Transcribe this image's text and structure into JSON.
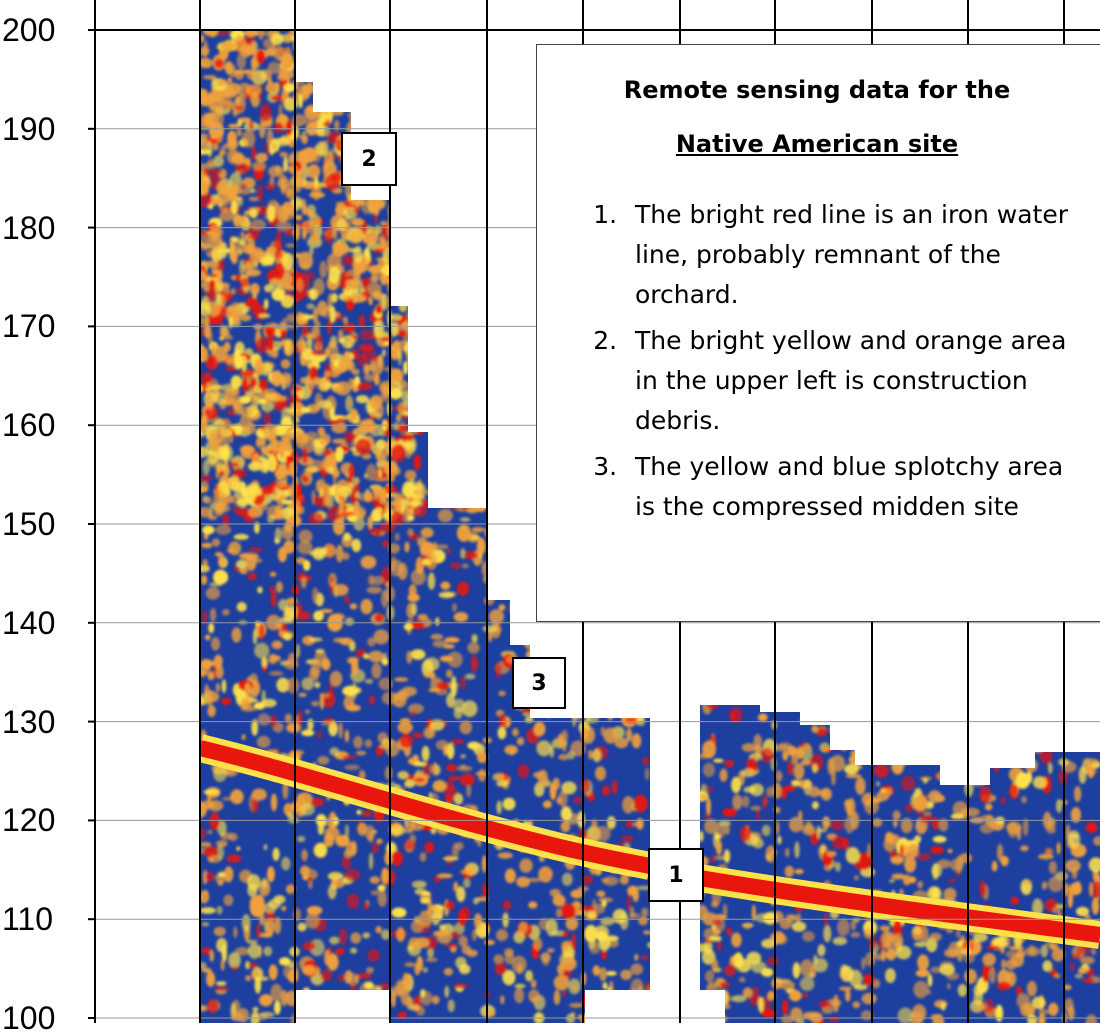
{
  "chart_data": {
    "type": "heatmap",
    "y_ticks": [
      "200",
      "190",
      "180",
      "170",
      "160",
      "150",
      "140",
      "130",
      "120",
      "110",
      "100"
    ],
    "ylim": [
      100,
      200
    ],
    "grid": true,
    "colors": {
      "background": "#1d3fa0",
      "low": "#f0a13c",
      "mid": "#ffe24a",
      "high": "#e8160c"
    }
  },
  "markers": [
    {
      "label": "2"
    },
    {
      "label": "3"
    },
    {
      "label": "1"
    }
  ],
  "legend": {
    "title_line1": "Remote sensing data for the",
    "title_line2": "Native American site",
    "items": [
      "The bright red line is an iron water line, probably remnant of the orchard.",
      "The bright yellow and orange area in the upper left is construction debris.",
      "The yellow and blue splotchy area is the compressed midden site"
    ]
  }
}
